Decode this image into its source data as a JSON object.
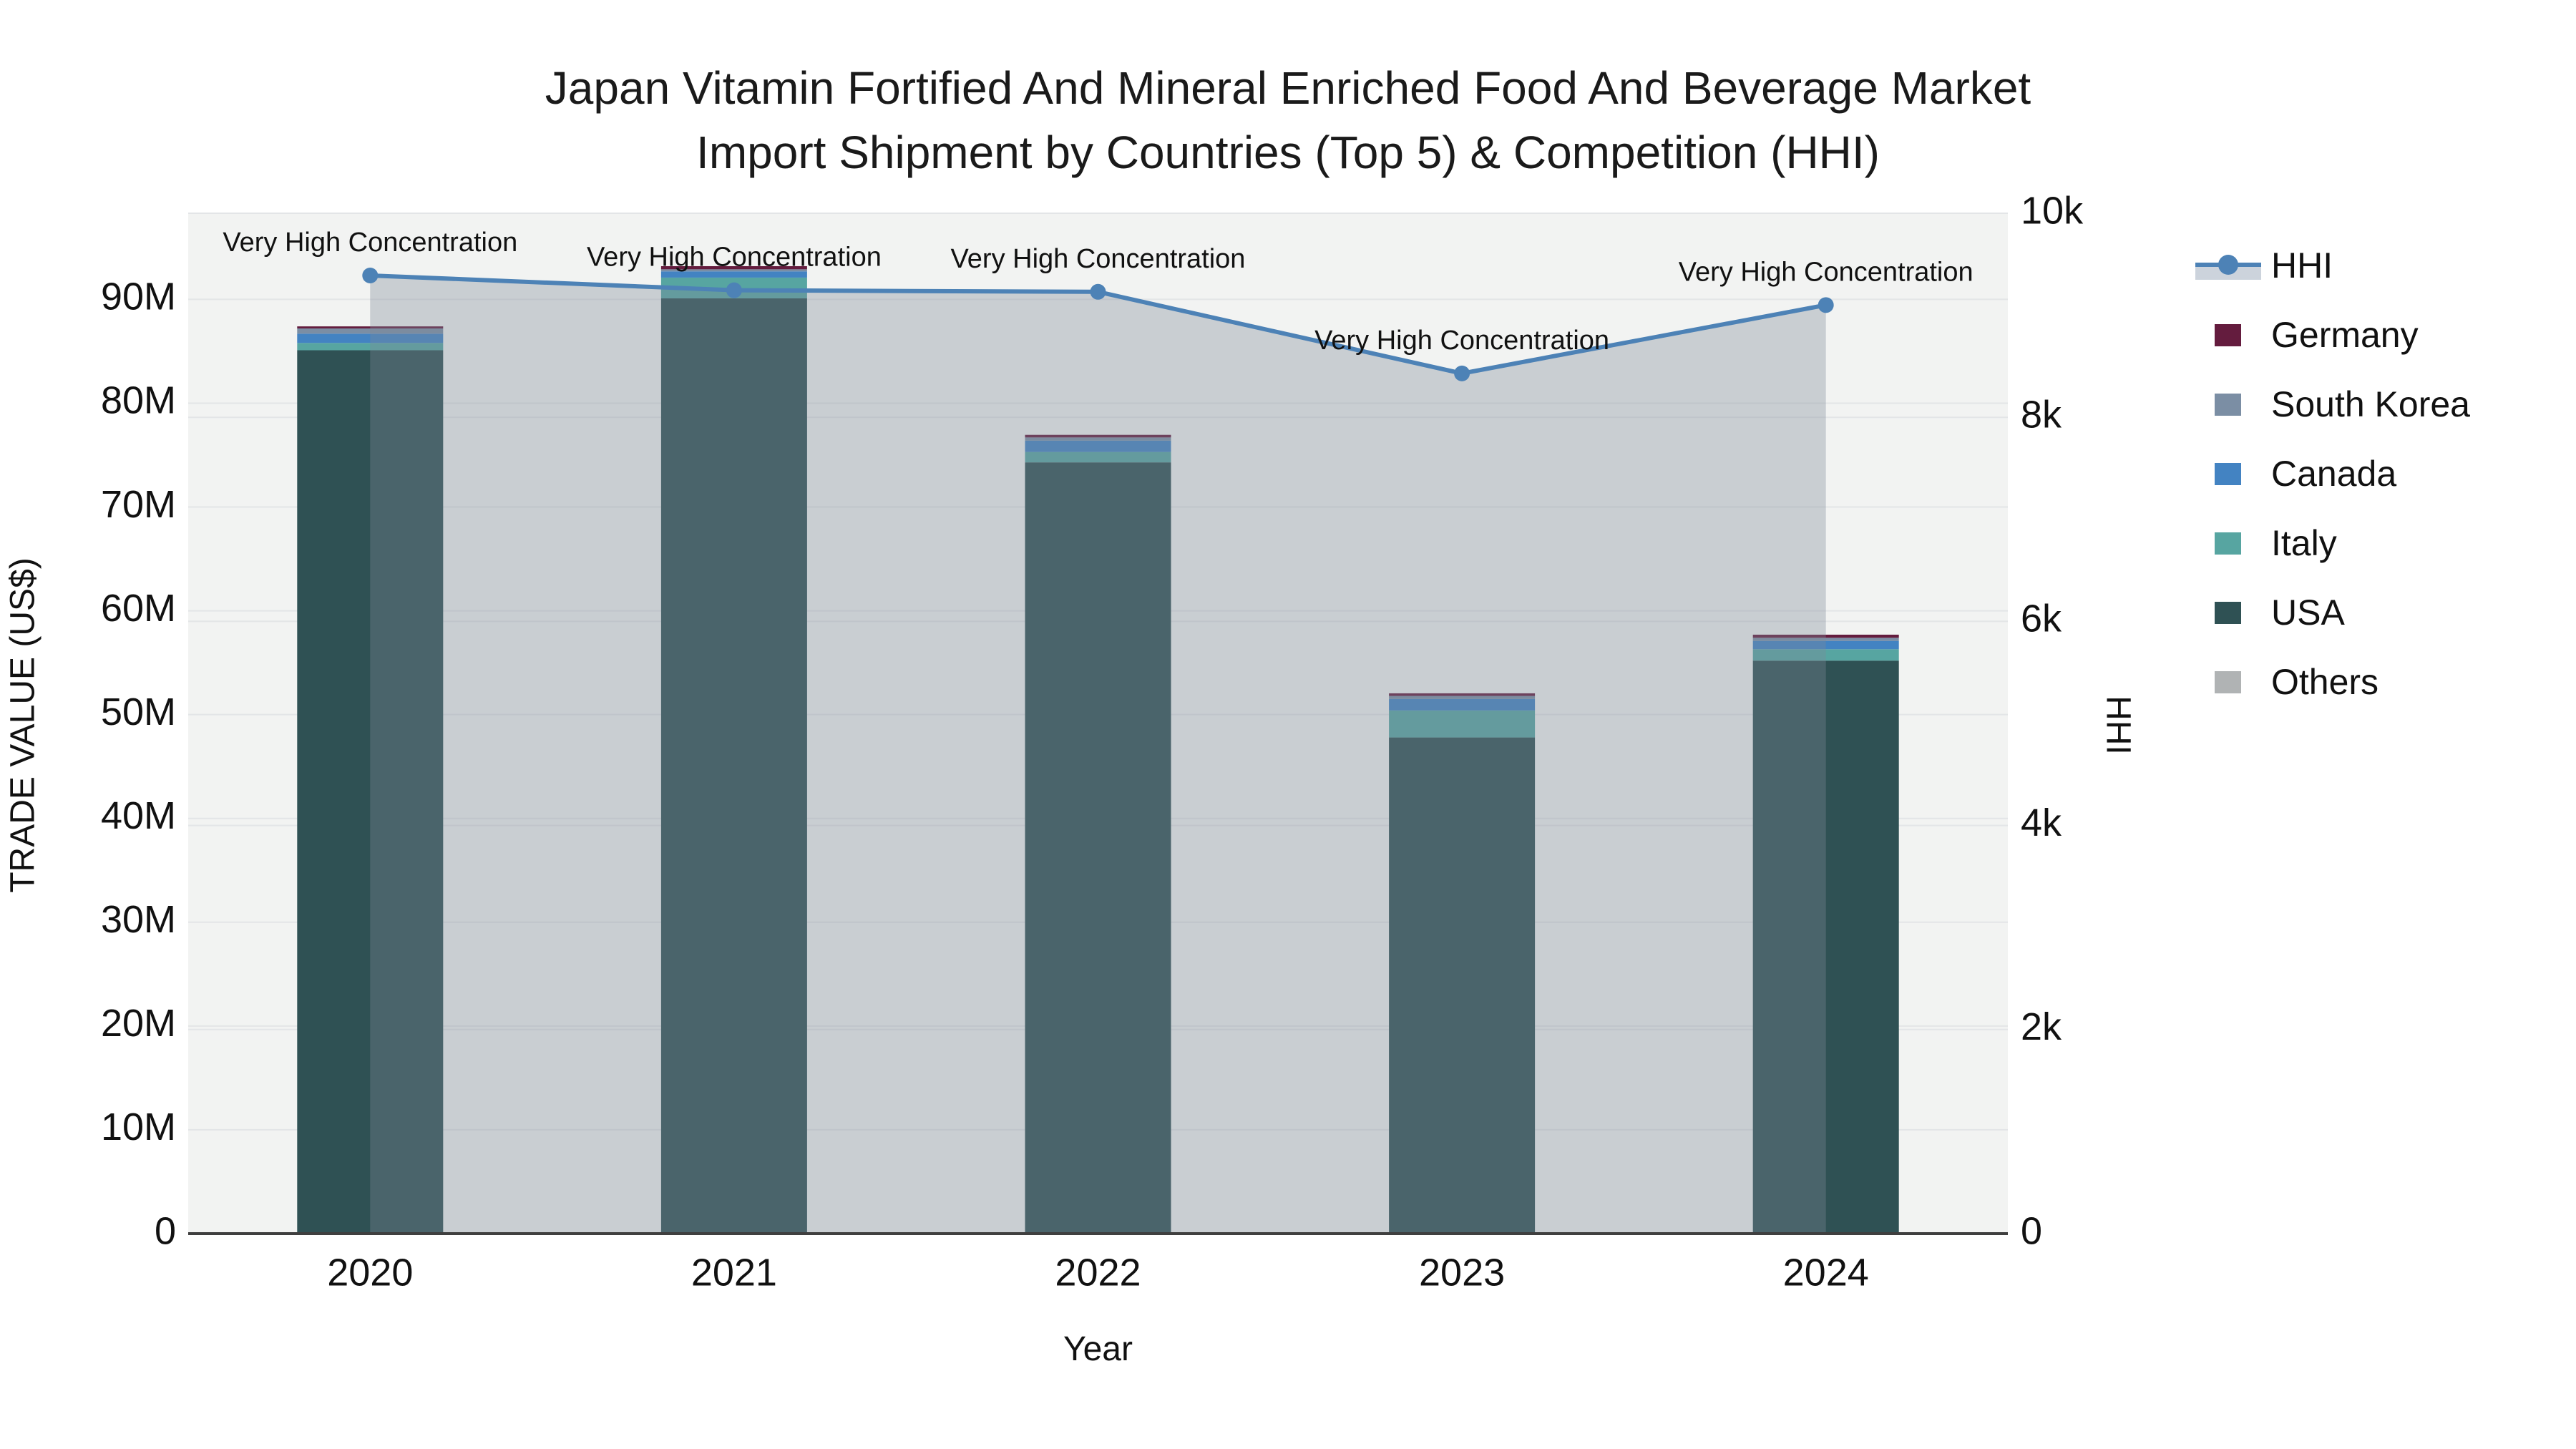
{
  "title": {
    "line1": "Japan Vitamin Fortified And Mineral Enriched Food And Beverage Market",
    "line2": "Import Shipment by Countries (Top 5) & Competition (HHI)"
  },
  "axes": {
    "x": {
      "title": "Year",
      "tick_labels": [
        "2020",
        "2021",
        "2022",
        "2023",
        "2024"
      ]
    },
    "y_left": {
      "title": "TRADE VALUE (US$)",
      "tick_labels": [
        "0",
        "10M",
        "20M",
        "30M",
        "40M",
        "50M",
        "60M",
        "70M",
        "80M",
        "90M"
      ],
      "tick_values_M": [
        0,
        10,
        20,
        30,
        40,
        50,
        60,
        70,
        80,
        90
      ]
    },
    "y_right": {
      "title": "HHI",
      "tick_labels": [
        "0",
        "2k",
        "4k",
        "6k",
        "8k",
        "10k"
      ],
      "tick_values": [
        0,
        2000,
        4000,
        6000,
        8000,
        10000
      ]
    }
  },
  "legend": {
    "entries": [
      {
        "label": "HHI",
        "type": "line",
        "color": "#4d82b6"
      },
      {
        "label": "Germany",
        "type": "swatch",
        "color": "#641c3e"
      },
      {
        "label": "South Korea",
        "type": "swatch",
        "color": "#7b8ea4"
      },
      {
        "label": "Canada",
        "type": "swatch",
        "color": "#4383c2"
      },
      {
        "label": "Italy",
        "type": "swatch",
        "color": "#57a5a1"
      },
      {
        "label": "USA",
        "type": "swatch",
        "color": "#2f5154"
      },
      {
        "label": "Others",
        "type": "swatch",
        "color": "#b0b3b4"
      }
    ]
  },
  "chart_data": {
    "type": "combo-stacked-bar-line",
    "categories": [
      "2020",
      "2021",
      "2022",
      "2023",
      "2024"
    ],
    "bar_unit": "Million US$",
    "stack_order_bottom_to_top": [
      "Others",
      "USA",
      "Italy",
      "Canada",
      "South Korea",
      "Germany"
    ],
    "series": [
      {
        "name": "Others",
        "color": "#b0b3b4",
        "values": [
          0,
          0,
          0,
          0,
          0
        ]
      },
      {
        "name": "USA",
        "color": "#2f5154",
        "values": [
          85.1,
          90.1,
          74.3,
          47.8,
          55.2
        ]
      },
      {
        "name": "Italy",
        "color": "#57a5a1",
        "values": [
          0.7,
          2.0,
          1.0,
          2.6,
          1.1
        ]
      },
      {
        "name": "Canada",
        "color": "#4383c2",
        "values": [
          0.9,
          0.6,
          1.1,
          1.1,
          0.8
        ]
      },
      {
        "name": "South Korea",
        "color": "#7b8ea4",
        "values": [
          0.5,
          0.2,
          0.3,
          0.3,
          0.3
        ]
      },
      {
        "name": "Germany",
        "color": "#641c3e",
        "values": [
          0.2,
          0.3,
          0.25,
          0.25,
          0.3
        ]
      }
    ],
    "bar_totals_M": [
      87.4,
      93.2,
      77.0,
      52.0,
      57.7
    ],
    "line_series": {
      "name": "HHI",
      "axis": "right",
      "color": "#4d82b6",
      "fill_color": "rgba(127,138,151,0.35)",
      "values": [
        9390,
        9245,
        9230,
        8430,
        9100
      ]
    },
    "annotations": [
      "Very High Concentration",
      "Very High Concentration",
      "Very High Concentration",
      "Very High Concentration",
      "Very High Concentration"
    ],
    "ylim_left_M": [
      0,
      98.3
    ],
    "ylim_right": [
      0,
      10000
    ],
    "grid": true,
    "legend_position": "right",
    "plot_bg": "#f2f3f2",
    "grid_color": "#e3e5e7",
    "axisline_color": "#3f3f3f"
  }
}
